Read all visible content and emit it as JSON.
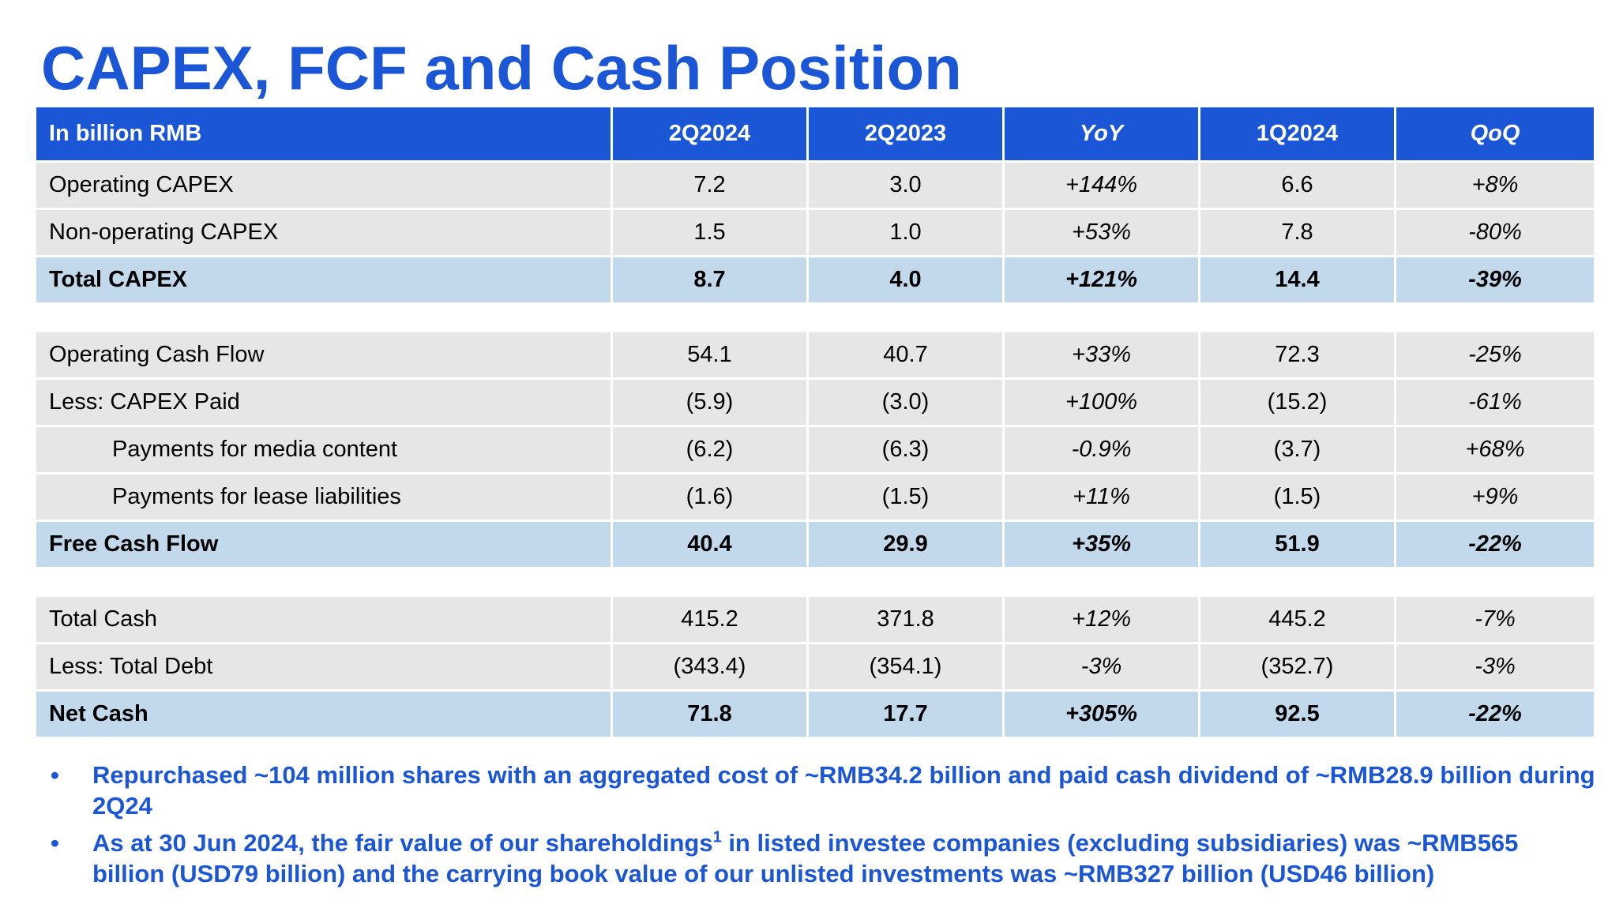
{
  "title": "CAPEX, FCF and Cash Position",
  "table": {
    "headers": [
      "In billion RMB",
      "2Q2024",
      "2Q2023",
      "YoY",
      "1Q2024",
      "QoQ"
    ],
    "capex_rows": [
      {
        "label": "Operating CAPEX",
        "cells": [
          "7.2",
          "3.0",
          "+144%",
          "6.6",
          "+8%"
        ]
      },
      {
        "label": "Non-operating CAPEX",
        "cells": [
          "1.5",
          "1.0",
          "+53%",
          "7.8",
          "-80%"
        ]
      },
      {
        "label": "Total CAPEX",
        "cells": [
          "8.7",
          "4.0",
          "+121%",
          "14.4",
          "-39%"
        ]
      }
    ],
    "fcf_rows": [
      {
        "label": "Operating Cash Flow",
        "cells": [
          "54.1",
          "40.7",
          "+33%",
          "72.3",
          "-25%"
        ]
      },
      {
        "label": "Less: CAPEX Paid",
        "cells": [
          "(5.9)",
          "(3.0)",
          "+100%",
          "(15.2)",
          "-61%"
        ]
      },
      {
        "label": "Payments for media content",
        "cells": [
          "(6.2)",
          "(6.3)",
          "-0.9%",
          "(3.7)",
          "+68%"
        ]
      },
      {
        "label": "Payments for lease liabilities",
        "cells": [
          "(1.6)",
          "(1.5)",
          "+11%",
          "(1.5)",
          "+9%"
        ]
      },
      {
        "label": "Free Cash Flow",
        "cells": [
          "40.4",
          "29.9",
          "+35%",
          "51.9",
          "-22%"
        ]
      }
    ],
    "cash_rows": [
      {
        "label": "Total Cash",
        "cells": [
          "415.2",
          "371.8",
          "+12%",
          "445.2",
          "-7%"
        ]
      },
      {
        "label": "Less: Total Debt",
        "cells": [
          "(343.4)",
          "(354.1)",
          "-3%",
          "(352.7)",
          "-3%"
        ]
      },
      {
        "label": "Net Cash",
        "cells": [
          "71.8",
          "17.7",
          "+305%",
          "92.5",
          "-22%"
        ]
      }
    ]
  },
  "bullets": {
    "marker": "•",
    "item1": "Repurchased ~104 million shares with an aggregated cost of ~RMB34.2 billion and paid cash dividend of ~RMB28.9 billion during 2Q24",
    "item2_part1": "As at 30 Jun 2024, the fair value of our shareholdings",
    "item2_sup": "1",
    "item2_part2": " in listed investee companies (excluding subsidiaries) was ~RMB565 billion (USD79 billion) and the carrying book value of our unlisted investments was ~RMB327 billion (USD46 billion)"
  },
  "colors": {
    "title_blue": "#1a56d6",
    "header_blue": "#1a56d6",
    "row_gray": "#e6e6e6",
    "total_row_blue": "#c2d9ec"
  }
}
